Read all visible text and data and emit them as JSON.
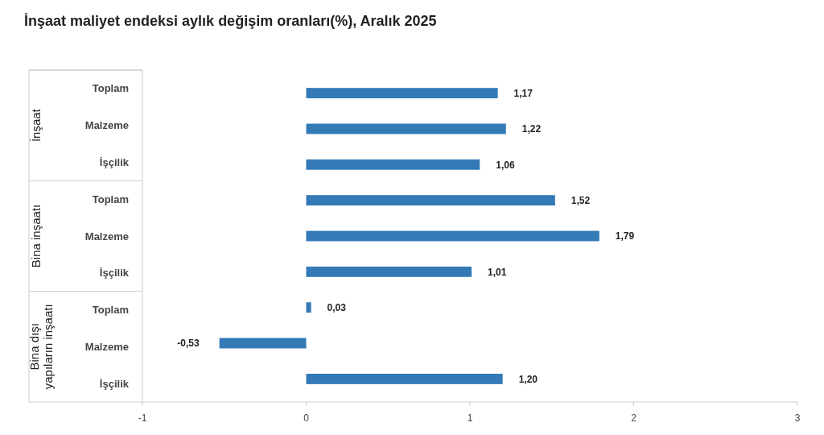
{
  "chart_data": {
    "type": "bar",
    "orientation": "horizontal",
    "title": "İnşaat maliyet endeksi aylık değişim oranları(%), Aralık 2025",
    "categories": [
      "Toplam",
      "Malzeme",
      "İşçilik",
      "Toplam",
      "Malzeme",
      "İşçilik",
      "Toplam",
      "Malzeme",
      "İşçilik"
    ],
    "values": [
      1.17,
      1.22,
      1.06,
      1.52,
      1.79,
      1.01,
      0.03,
      -0.53,
      1.2
    ],
    "value_labels": [
      "1,17",
      "1,22",
      "1,06",
      "1,52",
      "1,79",
      "1,01",
      "0,03",
      "-0,53",
      "1,20"
    ],
    "color": "#337ab7",
    "xlim": [
      -1,
      3
    ],
    "xticks": [
      -1,
      0,
      1,
      2,
      3
    ],
    "annotations": [
      "İnşaat",
      "Bina inşaatı",
      "Bina dışı yapıların inşaatı"
    ],
    "grid": false
  }
}
